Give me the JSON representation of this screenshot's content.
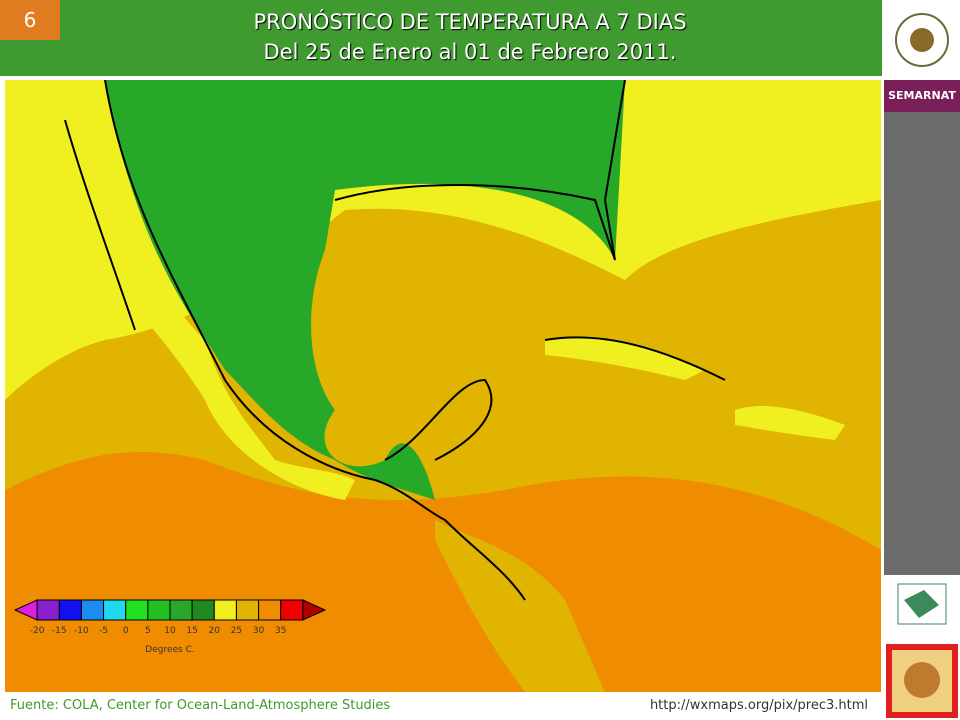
{
  "slide_number": "6",
  "header": {
    "title": "PRONÓSTICO DE TEMPERATURA A 7 DIAS",
    "subtitle": "Del 25 de Enero al 01 de Febrero 2011."
  },
  "sidebar": {
    "brand": "SEMARNAT"
  },
  "legend": {
    "ticks": [
      -20,
      -15,
      -10,
      -5,
      0,
      5,
      10,
      15,
      20,
      25,
      30,
      35
    ],
    "colors": [
      "#e020e0",
      "#8a1fd0",
      "#1010f0",
      "#1c8cf0",
      "#20d8f0",
      "#20e020",
      "#20c020",
      "#28a828",
      "#1f8a1f",
      "#f0f020",
      "#e0b400",
      "#f08c00",
      "#f00000",
      "#b00000"
    ],
    "unit": "Degrees C."
  },
  "footer": {
    "source": "Fuente: COLA, Center  for Ocean-Land-Atmosphere Studies",
    "url": "http://wxmaps.org/pix/prec3.html"
  }
}
